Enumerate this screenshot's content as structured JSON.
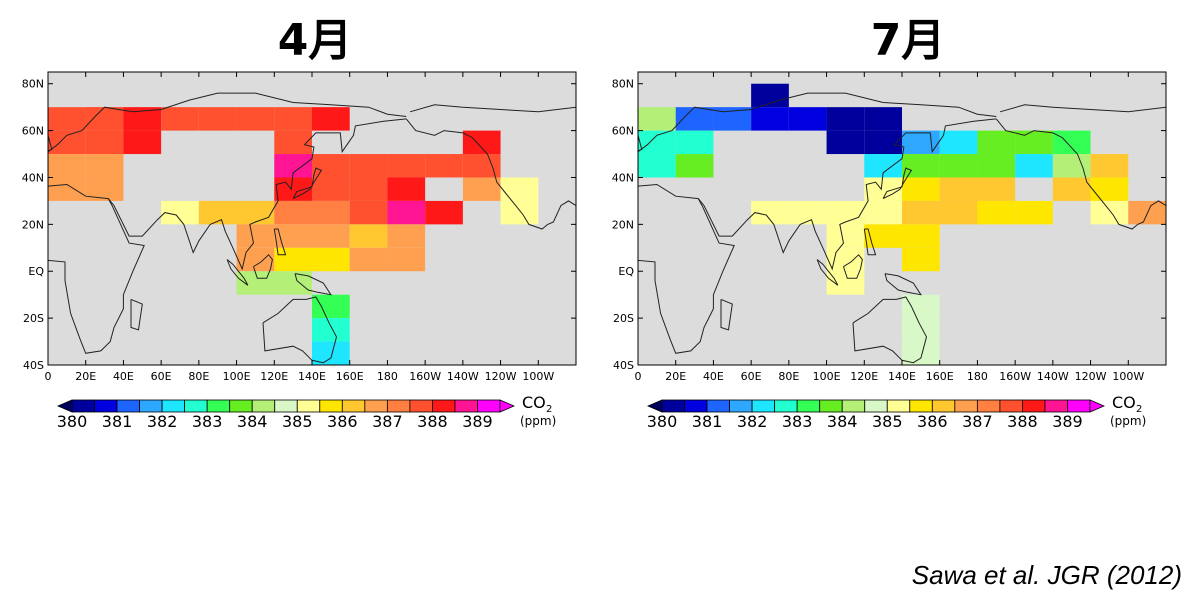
{
  "colorbar": {
    "levels": [
      "380",
      "381",
      "382",
      "383",
      "384",
      "385",
      "386",
      "387",
      "388",
      "389"
    ],
    "colors": [
      "#00009c",
      "#0000e0",
      "#1e64ff",
      "#2ea8ff",
      "#1ee6ff",
      "#22ffd0",
      "#33ff55",
      "#66ee22",
      "#b4f078",
      "#d8f8c8",
      "#ffff96",
      "#ffe600",
      "#ffc830",
      "#ffa050",
      "#ff8040",
      "#ff5030",
      "#ff1818",
      "#ff1493",
      "#ff00ff"
    ],
    "unit_main": "CO",
    "unit_sub": "2",
    "unit_ppm": "(ppm)"
  },
  "axes": {
    "lat_labels": [
      "80N",
      "60N",
      "40N",
      "20N",
      "EQ",
      "20S",
      "40S"
    ],
    "lon_labels": [
      "0",
      "20E",
      "40E",
      "60E",
      "80E",
      "100E",
      "120E",
      "140E",
      "160E",
      "180",
      "160W",
      "140W",
      "120W",
      "100W"
    ]
  },
  "panels": [
    {
      "title": "4月",
      "cells": [
        {
          "lon": 0,
          "lat": 60,
          "c": "#ff5030"
        },
        {
          "lon": 20,
          "lat": 60,
          "c": "#ff5030"
        },
        {
          "lon": 40,
          "lat": 60,
          "c": "#ff1818"
        },
        {
          "lon": 60,
          "lat": 60,
          "c": "#ff5030"
        },
        {
          "lon": 80,
          "lat": 60,
          "c": "#ff5030"
        },
        {
          "lon": 100,
          "lat": 60,
          "c": "#ff5030"
        },
        {
          "lon": 120,
          "lat": 60,
          "c": "#ff5030"
        },
        {
          "lon": 140,
          "lat": 60,
          "c": "#ff1818"
        },
        {
          "lon": 20,
          "lat": 60,
          "c": "#ff5030"
        },
        {
          "lon": 0,
          "lat": 50,
          "c": "#ff5030"
        },
        {
          "lon": 20,
          "lat": 50,
          "c": "#ff5030"
        },
        {
          "lon": 40,
          "lat": 50,
          "c": "#ff1818"
        },
        {
          "lon": 120,
          "lat": 50,
          "c": "#ff5030"
        },
        {
          "lon": 220,
          "lat": 50,
          "c": "#ff1818"
        },
        {
          "lon": 0,
          "lat": 40,
          "c": "#ffa050"
        },
        {
          "lon": 20,
          "lat": 40,
          "c": "#ffa050"
        },
        {
          "lon": 120,
          "lat": 40,
          "c": "#ff1493"
        },
        {
          "lon": 140,
          "lat": 40,
          "c": "#ff5030"
        },
        {
          "lon": 160,
          "lat": 40,
          "c": "#ff5030"
        },
        {
          "lon": 180,
          "lat": 40,
          "c": "#ff5030"
        },
        {
          "lon": 200,
          "lat": 40,
          "c": "#ff5030"
        },
        {
          "lon": 220,
          "lat": 40,
          "c": "#ff5030"
        },
        {
          "lon": 0,
          "lat": 30,
          "c": "#ffa050"
        },
        {
          "lon": 20,
          "lat": 30,
          "c": "#ffa050"
        },
        {
          "lon": 120,
          "lat": 30,
          "c": "#ff1818"
        },
        {
          "lon": 140,
          "lat": 30,
          "c": "#ff5030"
        },
        {
          "lon": 160,
          "lat": 30,
          "c": "#ff5030"
        },
        {
          "lon": 180,
          "lat": 30,
          "c": "#ff1818"
        },
        {
          "lon": 220,
          "lat": 30,
          "c": "#ffa050"
        },
        {
          "lon": 240,
          "lat": 30,
          "c": "#ffff96"
        },
        {
          "lon": 60,
          "lat": 20,
          "c": "#ffff96"
        },
        {
          "lon": 80,
          "lat": 20,
          "c": "#ffc830"
        },
        {
          "lon": 100,
          "lat": 20,
          "c": "#ffc830"
        },
        {
          "lon": 120,
          "lat": 20,
          "c": "#ff8040"
        },
        {
          "lon": 140,
          "lat": 20,
          "c": "#ff8040"
        },
        {
          "lon": 160,
          "lat": 20,
          "c": "#ff5030"
        },
        {
          "lon": 180,
          "lat": 20,
          "c": "#ff1493"
        },
        {
          "lon": 200,
          "lat": 20,
          "c": "#ff1818"
        },
        {
          "lon": 240,
          "lat": 20,
          "c": "#ffff96"
        },
        {
          "lon": 100,
          "lat": 10,
          "c": "#ffa050"
        },
        {
          "lon": 120,
          "lat": 10,
          "c": "#ffa050"
        },
        {
          "lon": 140,
          "lat": 10,
          "c": "#ffa050"
        },
        {
          "lon": 160,
          "lat": 10,
          "c": "#ffc830"
        },
        {
          "lon": 180,
          "lat": 10,
          "c": "#ffa050"
        },
        {
          "lon": 100,
          "lat": 0,
          "c": "#ffa050"
        },
        {
          "lon": 120,
          "lat": 0,
          "c": "#ffe600"
        },
        {
          "lon": 140,
          "lat": 0,
          "c": "#ffe600"
        },
        {
          "lon": 160,
          "lat": 0,
          "c": "#ffa050"
        },
        {
          "lon": 180,
          "lat": 0,
          "c": "#ffa050"
        },
        {
          "lon": 100,
          "lat": -10,
          "c": "#b4f078"
        },
        {
          "lon": 120,
          "lat": -10,
          "c": "#b4f078"
        },
        {
          "lon": 140,
          "lat": -20,
          "c": "#33ff55"
        },
        {
          "lon": 140,
          "lat": -30,
          "c": "#22ffd0"
        },
        {
          "lon": 140,
          "lat": -40,
          "c": "#1ee6ff"
        }
      ]
    },
    {
      "title": "7月",
      "cells": [
        {
          "lon": 60,
          "lat": 70,
          "c": "#00009c"
        },
        {
          "lon": 0,
          "lat": 60,
          "c": "#b4f078"
        },
        {
          "lon": 20,
          "lat": 60,
          "c": "#1e64ff"
        },
        {
          "lon": 40,
          "lat": 60,
          "c": "#1e64ff"
        },
        {
          "lon": 60,
          "lat": 60,
          "c": "#0000e0"
        },
        {
          "lon": 80,
          "lat": 60,
          "c": "#0000e0"
        },
        {
          "lon": 100,
          "lat": 60,
          "c": "#00009c"
        },
        {
          "lon": 120,
          "lat": 60,
          "c": "#00009c"
        },
        {
          "lon": 0,
          "lat": 50,
          "c": "#22ffd0"
        },
        {
          "lon": 20,
          "lat": 50,
          "c": "#22ffd0"
        },
        {
          "lon": 100,
          "lat": 50,
          "c": "#00009c"
        },
        {
          "lon": 120,
          "lat": 50,
          "c": "#00009c"
        },
        {
          "lon": 140,
          "lat": 50,
          "c": "#2ea8ff"
        },
        {
          "lon": 160,
          "lat": 50,
          "c": "#1ee6ff"
        },
        {
          "lon": 180,
          "lat": 50,
          "c": "#66ee22"
        },
        {
          "lon": 200,
          "lat": 50,
          "c": "#66ee22"
        },
        {
          "lon": 220,
          "lat": 50,
          "c": "#33ff55"
        },
        {
          "lon": 0,
          "lat": 40,
          "c": "#22ffd0"
        },
        {
          "lon": 20,
          "lat": 40,
          "c": "#66ee22"
        },
        {
          "lon": 120,
          "lat": 40,
          "c": "#1ee6ff"
        },
        {
          "lon": 140,
          "lat": 40,
          "c": "#66ee22"
        },
        {
          "lon": 160,
          "lat": 40,
          "c": "#66ee22"
        },
        {
          "lon": 180,
          "lat": 40,
          "c": "#66ee22"
        },
        {
          "lon": 200,
          "lat": 40,
          "c": "#1ee6ff"
        },
        {
          "lon": 220,
          "lat": 40,
          "c": "#b4f078"
        },
        {
          "lon": 240,
          "lat": 40,
          "c": "#ffc830"
        },
        {
          "lon": 120,
          "lat": 30,
          "c": "#ffff96"
        },
        {
          "lon": 140,
          "lat": 30,
          "c": "#ffe600"
        },
        {
          "lon": 160,
          "lat": 30,
          "c": "#ffc830"
        },
        {
          "lon": 180,
          "lat": 30,
          "c": "#ffc830"
        },
        {
          "lon": 220,
          "lat": 30,
          "c": "#ffc830"
        },
        {
          "lon": 240,
          "lat": 30,
          "c": "#ffe600"
        },
        {
          "lon": 60,
          "lat": 20,
          "c": "#ffff96"
        },
        {
          "lon": 80,
          "lat": 20,
          "c": "#ffff96"
        },
        {
          "lon": 100,
          "lat": 20,
          "c": "#ffff96"
        },
        {
          "lon": 120,
          "lat": 20,
          "c": "#ffff96"
        },
        {
          "lon": 140,
          "lat": 20,
          "c": "#ffc830"
        },
        {
          "lon": 160,
          "lat": 20,
          "c": "#ffc830"
        },
        {
          "lon": 180,
          "lat": 20,
          "c": "#ffe600"
        },
        {
          "lon": 200,
          "lat": 20,
          "c": "#ffe600"
        },
        {
          "lon": 240,
          "lat": 20,
          "c": "#ffff96"
        },
        {
          "lon": 260,
          "lat": 20,
          "c": "#ffa050"
        },
        {
          "lon": 100,
          "lat": 10,
          "c": "#ffff96"
        },
        {
          "lon": 120,
          "lat": 10,
          "c": "#ffe600"
        },
        {
          "lon": 140,
          "lat": 10,
          "c": "#ffe600"
        },
        {
          "lon": 100,
          "lat": 0,
          "c": "#ffff96"
        },
        {
          "lon": 140,
          "lat": 0,
          "c": "#ffe600"
        },
        {
          "lon": 100,
          "lat": -10,
          "c": "#ffff96"
        },
        {
          "lon": 140,
          "lat": -20,
          "c": "#d8f8c8"
        },
        {
          "lon": 140,
          "lat": -30,
          "c": "#d8f8c8"
        },
        {
          "lon": 140,
          "lat": -40,
          "c": "#d8f8c8"
        }
      ]
    }
  ],
  "citation": "Sawa et al. JGR (2012)"
}
